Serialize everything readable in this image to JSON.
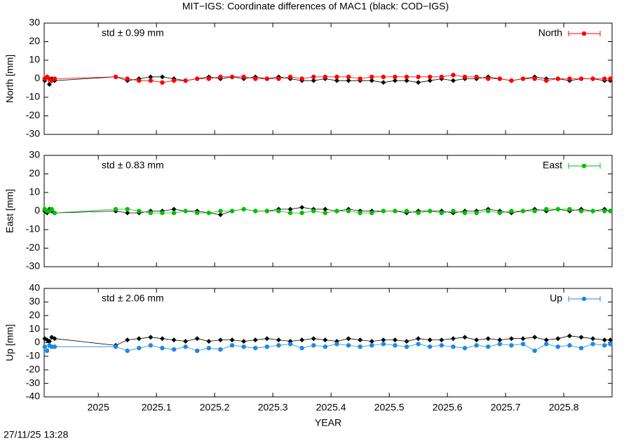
{
  "title": "MIT−IGS: Coordinate differences of MAC1 (black: COD−IGS)",
  "timestamp": "27/11/25 13:28",
  "chart_data": [
    {
      "type": "scatter",
      "ylabel": "North [mm]",
      "annotation": "std ± 0.99 mm",
      "xlim": [
        2024.907,
        2025.883
      ],
      "xticks": [
        2025,
        2025.1,
        2025.2,
        2025.3,
        2025.4,
        2025.5,
        2025.6,
        2025.7,
        2025.8
      ],
      "ylim": [
        -30,
        30
      ],
      "yticks": [
        -30,
        -20,
        -10,
        0,
        10,
        20,
        30
      ],
      "x": [
        2024.908,
        2024.912,
        2024.916,
        2024.92,
        2024.925,
        2025.03,
        2025.05,
        2025.07,
        2025.09,
        2025.11,
        2025.13,
        2025.15,
        2025.17,
        2025.19,
        2025.21,
        2025.23,
        2025.25,
        2025.27,
        2025.29,
        2025.31,
        2025.33,
        2025.35,
        2025.37,
        2025.39,
        2025.41,
        2025.43,
        2025.45,
        2025.47,
        2025.49,
        2025.51,
        2025.53,
        2025.55,
        2025.57,
        2025.59,
        2025.61,
        2025.63,
        2025.65,
        2025.67,
        2025.69,
        2025.71,
        2025.73,
        2025.75,
        2025.77,
        2025.79,
        2025.81,
        2025.83,
        2025.85,
        2025.87,
        2025.88
      ],
      "series": [
        {
          "color": "#000000",
          "values": [
            -1,
            1,
            -3,
            0,
            -1,
            1,
            -1,
            0,
            1,
            1,
            0,
            -1,
            0,
            1,
            0,
            1,
            0,
            1,
            0,
            1,
            0,
            -1,
            -1,
            0,
            -1,
            -1,
            -1,
            -1,
            -2,
            -1,
            -1,
            -2,
            -1,
            0,
            -1,
            0,
            0,
            1,
            0,
            -1,
            0,
            1,
            0,
            0,
            -1,
            0,
            0,
            -1,
            -1
          ]
        },
        {
          "name": "North",
          "color": "#ff0000",
          "values": [
            0,
            1,
            0,
            -1,
            0,
            1,
            0,
            -1,
            -1,
            -2,
            -1,
            -1,
            0,
            0,
            1,
            1,
            1,
            0,
            0,
            0,
            1,
            0,
            1,
            1,
            1,
            1,
            0,
            1,
            1,
            1,
            1,
            1,
            1,
            1,
            2,
            1,
            1,
            0,
            0,
            -1,
            0,
            0,
            -1,
            0,
            0,
            0,
            0,
            0,
            0
          ]
        }
      ]
    },
    {
      "type": "scatter",
      "ylabel": "East [mm]",
      "annotation": "std ± 0.83 mm",
      "xlim": [
        2024.907,
        2025.883
      ],
      "xticks": [
        2025,
        2025.1,
        2025.2,
        2025.3,
        2025.4,
        2025.5,
        2025.6,
        2025.7,
        2025.8
      ],
      "ylim": [
        -30,
        30
      ],
      "yticks": [
        -30,
        -20,
        -10,
        0,
        10,
        20,
        30
      ],
      "x": [
        2024.908,
        2024.912,
        2024.916,
        2024.92,
        2024.925,
        2025.03,
        2025.05,
        2025.07,
        2025.09,
        2025.11,
        2025.13,
        2025.15,
        2025.17,
        2025.19,
        2025.21,
        2025.23,
        2025.25,
        2025.27,
        2025.29,
        2025.31,
        2025.33,
        2025.35,
        2025.37,
        2025.39,
        2025.41,
        2025.43,
        2025.45,
        2025.47,
        2025.49,
        2025.51,
        2025.53,
        2025.55,
        2025.57,
        2025.59,
        2025.61,
        2025.63,
        2025.65,
        2025.67,
        2025.69,
        2025.71,
        2025.73,
        2025.75,
        2025.77,
        2025.79,
        2025.81,
        2025.83,
        2025.85,
        2025.87,
        2025.88
      ],
      "series": [
        {
          "color": "#000000",
          "values": [
            0,
            -1,
            1,
            0,
            -1,
            0,
            -1,
            -1,
            0,
            0,
            1,
            0,
            0,
            -1,
            -2,
            0,
            1,
            0,
            0,
            1,
            1,
            2,
            1,
            1,
            0,
            1,
            0,
            0,
            0,
            0,
            -1,
            0,
            0,
            0,
            -1,
            0,
            0,
            1,
            0,
            -1,
            0,
            1,
            0,
            1,
            0,
            1,
            0,
            1,
            0
          ]
        },
        {
          "name": "East",
          "color": "#00c000",
          "values": [
            1,
            0,
            0,
            1,
            -1,
            1,
            1,
            0,
            -1,
            -1,
            -1,
            0,
            -1,
            -1,
            0,
            0,
            1,
            0,
            0,
            0,
            -1,
            -1,
            0,
            -1,
            0,
            0,
            -1,
            -1,
            0,
            0,
            0,
            -1,
            0,
            -1,
            0,
            -1,
            -1,
            0,
            -1,
            0,
            0,
            0,
            1,
            1,
            1,
            0,
            0,
            0,
            0
          ]
        }
      ]
    },
    {
      "type": "scatter",
      "ylabel": "Up [mm]",
      "annotation": "std ± 2.06 mm",
      "xlabel": "YEAR",
      "xlim": [
        2024.907,
        2025.883
      ],
      "xticks": [
        2025,
        2025.1,
        2025.2,
        2025.3,
        2025.4,
        2025.5,
        2025.6,
        2025.7,
        2025.8
      ],
      "ylim": [
        -40,
        40
      ],
      "yticks": [
        -40,
        -30,
        -20,
        -10,
        0,
        10,
        20,
        30,
        40
      ],
      "x": [
        2024.908,
        2024.912,
        2024.916,
        2024.92,
        2024.925,
        2025.03,
        2025.05,
        2025.07,
        2025.09,
        2025.11,
        2025.13,
        2025.15,
        2025.17,
        2025.19,
        2025.21,
        2025.23,
        2025.25,
        2025.27,
        2025.29,
        2025.31,
        2025.33,
        2025.35,
        2025.37,
        2025.39,
        2025.41,
        2025.43,
        2025.45,
        2025.47,
        2025.49,
        2025.51,
        2025.53,
        2025.55,
        2025.57,
        2025.59,
        2025.61,
        2025.63,
        2025.65,
        2025.67,
        2025.69,
        2025.71,
        2025.73,
        2025.75,
        2025.77,
        2025.79,
        2025.81,
        2025.83,
        2025.85,
        2025.87,
        2025.88
      ],
      "series": [
        {
          "color": "#000000",
          "values": [
            3,
            2,
            1,
            4,
            3,
            -2,
            2,
            3,
            4,
            3,
            2,
            1,
            3,
            1,
            2,
            2,
            1,
            2,
            3,
            2,
            1,
            2,
            3,
            2,
            1,
            3,
            2,
            1,
            2,
            2,
            1,
            3,
            2,
            2,
            3,
            4,
            2,
            3,
            2,
            3,
            3,
            4,
            2,
            3,
            5,
            4,
            3,
            2,
            2
          ]
        },
        {
          "name": "Up",
          "color": "#1e88e5",
          "values": [
            -3,
            -6,
            -2,
            -3,
            -3,
            -3,
            -6,
            -4,
            -2,
            -4,
            -5,
            -3,
            -6,
            -4,
            -5,
            -2,
            -3,
            -4,
            -3,
            -2,
            -1,
            -4,
            -2,
            -3,
            -1,
            -2,
            -3,
            -2,
            -1,
            -2,
            -3,
            -1,
            -3,
            -2,
            -3,
            -4,
            -2,
            -3,
            -1,
            -2,
            -1,
            -6,
            -1,
            -3,
            -2,
            -4,
            -1,
            -2,
            -1
          ]
        }
      ]
    }
  ]
}
